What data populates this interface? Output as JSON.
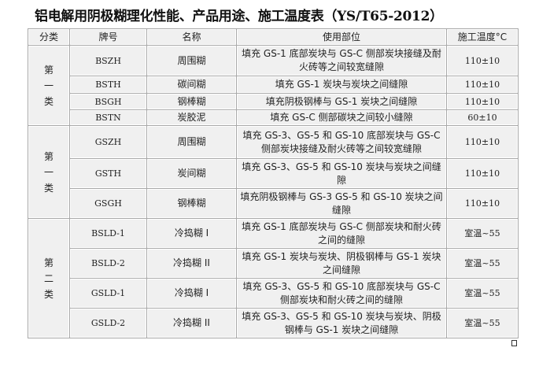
{
  "title": "铝电解用阴极糊理化性能、产品用途、施工温度表（YS/T65-2012）",
  "headers": [
    "分类",
    "牌号",
    "名称",
    "使用部位",
    "施工温度°C"
  ],
  "groups": [
    {
      "category": "第一类",
      "rows": [
        {
          "code": "BSZH",
          "name": "周围糊",
          "usage": "填充 GS-1 底部炭块与 GS-C 侧部炭块接缝及耐火砖等之间较宽缝隙",
          "temp": "110±10"
        },
        {
          "code": "BSTH",
          "name": "碳间糊",
          "usage": "填充 GS-1 炭块与炭块之间缝隙",
          "temp": "110±10"
        },
        {
          "code": "BSGH",
          "name": "钢棒糊",
          "usage": "填充阴极钢棒与 GS-1 炭块之间缝隙",
          "temp": "110±10"
        },
        {
          "code": "BSTN",
          "name": "炭胶泥",
          "usage": "填充 GS-C 侧部碳块之间较小缝隙",
          "temp": "60±10"
        }
      ]
    },
    {
      "category": "第一类",
      "rows": [
        {
          "code": "GSZH",
          "name": "周围糊",
          "usage": "填充 GS-3、GS-5 和 GS-10 底部炭块与 GS-C 侧部炭块接缝及耐火砖等之间较宽缝隙",
          "temp": "110±10"
        },
        {
          "code": "GSTH",
          "name": "炭间糊",
          "usage": "填充 GS-3、GS-5 和 GS-10 炭块与炭块之间缝隙",
          "temp": "110±10"
        },
        {
          "code": "GSGH",
          "name": "钢棒糊",
          "usage": "填充阴极钢棒与 GS-3 GS-5 和 GS-10 炭块之间缝隙",
          "temp": "110±10"
        }
      ]
    },
    {
      "category": "第二类",
      "rows": [
        {
          "code": "BSLD-1",
          "name": "冷捣糊 I",
          "usage": "填充 GS-1 底部炭块与 GS-C 侧部炭块和耐火砖之间的缝隙",
          "temp": "室温~55"
        },
        {
          "code": "BSLD-2",
          "name": "冷捣糊 II",
          "usage": "填充 GS-1 炭块与炭块、阴极钢棒与 GS-1 炭块之间缝隙",
          "temp": "室温~55"
        },
        {
          "code": "GSLD-1",
          "name": "冷捣糊 I",
          "usage": "填充 GS-3、GS-5 和 GS-10 底部炭块与 GS-C 侧部炭块和耐火砖之间的缝隙",
          "temp": "室温~55"
        },
        {
          "code": "GSLD-2",
          "name": "冷捣糊 II",
          "usage": "填充 GS-3、GS-5 和 GS-10 炭块与炭块、阴极钢棒与 GS-1 炭块之间缝隙",
          "temp": "室温~55"
        }
      ]
    }
  ]
}
